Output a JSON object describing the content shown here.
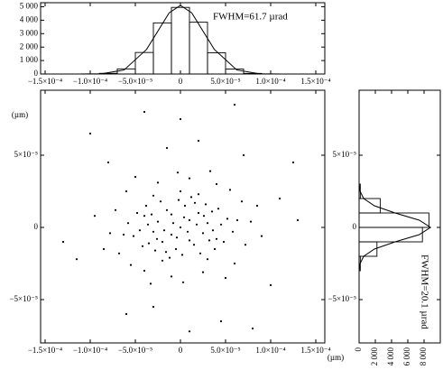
{
  "chart_data": [
    {
      "type": "histogram",
      "annotation": "FWHM=61.7 µrad",
      "bins": [
        -0.00015,
        -0.00013,
        -0.00011,
        -9e-05,
        -7e-05,
        -5e-05,
        -3e-05,
        -1e-05,
        1e-05,
        3e-05,
        5e-05,
        7e-05,
        9e-05,
        0.00011,
        0.00013,
        0.00015
      ],
      "values": [
        0,
        0,
        5,
        50,
        380,
        1600,
        3800,
        4950,
        3850,
        1580,
        370,
        45,
        4,
        0,
        0
      ],
      "fit": {
        "x": [
          -0.0001375,
          -0.0001125,
          -8.75e-05,
          -6.25e-05,
          -3.75e-05,
          -1.25e-05,
          0,
          1.25e-05,
          3.75e-05,
          6.25e-05,
          8.75e-05,
          0.0001125,
          0.0001375
        ],
        "values": [
          0,
          1,
          19,
          297,
          1832,
          4550,
          5100,
          4550,
          1832,
          297,
          19,
          1,
          0
        ]
      },
      "xlim": [
        -0.000155,
        0.00016
      ],
      "xticks": [
        {
          "value": -0.00015,
          "label": "−1.5×10⁻⁴"
        },
        {
          "value": -0.0001,
          "label": "−1.0×10⁻⁴"
        },
        {
          "value": -5e-05,
          "label": "−5.0×10⁻⁵"
        },
        0,
        {
          "value": 5e-05,
          "label": "5.0×10⁻⁵"
        },
        {
          "value": 0.0001,
          "label": "1.0×10⁻⁴"
        },
        {
          "value": 0.00015,
          "label": "1.5×10⁻⁴"
        }
      ],
      "ylim": [
        0,
        5300
      ],
      "yticks": [
        0,
        {
          "value": 1000,
          "label": "1 000"
        },
        {
          "value": 2000,
          "label": "2 000"
        },
        {
          "value": 3000,
          "label": "3 000"
        },
        {
          "value": 4000,
          "label": "4 000"
        },
        {
          "value": 5000,
          "label": "5 000"
        }
      ]
    },
    {
      "type": "scatter",
      "x_label": "(µm)",
      "y_label": "(µm)",
      "x": [
        0,
        1e-05,
        -1e-05,
        2e-05,
        -2e-05,
        3e-05,
        -3e-05,
        5e-06,
        -5e-06,
        4e-05,
        -4e-05,
        1.5e-05,
        -1.5e-05,
        2.5e-05,
        -2.5e-05,
        3.5e-05,
        -3.5e-05,
        2e-06,
        -2e-06,
        4.5e-05,
        -4.5e-05,
        1.2e-05,
        -1.2e-05,
        2.8e-05,
        -2.8e-05,
        3.8e-05,
        -3.8e-05,
        5.2e-05,
        -5.2e-05,
        8e-06,
        -8e-06,
        1.8e-05,
        -1.8e-05,
        2.2e-05,
        -2.2e-05,
        3.2e-05,
        -3.2e-05,
        4.2e-05,
        -4.2e-05,
        5.8e-05,
        -5.8e-05,
        4e-06,
        -4e-06,
        1.6e-05,
        -1.6e-05,
        2.6e-05,
        -2.6e-05,
        3.6e-05,
        -3.6e-05,
        4.8e-05,
        -4.8e-05,
        6.3e-05,
        -6.3e-05,
        1e-05,
        -1e-05,
        2e-05,
        -2e-05,
        3e-05,
        -3e-05,
        0,
        6.8e-05,
        -6.8e-05,
        7.2e-05,
        -7.2e-05,
        5.5e-05,
        -5.5e-05,
        4e-05,
        -4e-05,
        1e-05,
        -1e-05,
        2.5e-05,
        -2.5e-05,
        7.8e-05,
        -7.8e-05,
        6e-05,
        -6e-05,
        3e-06,
        -3e-06,
        8.5e-05,
        -8.5e-05,
        3.3e-05,
        -3.3e-05,
        5e-05,
        -5e-05,
        9e-05,
        -9.5e-05,
        0.00011,
        -0.000115,
        2e-05,
        -3e-05,
        7e-05,
        -8e-05,
        0.0001,
        -6e-05,
        0,
        4.5e-05,
        -1.5e-05,
        0.00013,
        -0.00013,
        8e-05,
        -0.0001,
        1e-05,
        0.000125,
        -4e-05,
        6e-05
      ],
      "y": [
        0,
        5e-06,
        -5e-06,
        1e-05,
        -1e-05,
        3e-06,
        -3e-06,
        1.5e-05,
        -1.5e-05,
        -8e-06,
        8e-06,
        -1.2e-05,
        1.2e-05,
        -4e-06,
        4e-06,
        1.1e-05,
        -1.1e-05,
        -1.9e-05,
        1.9e-05,
        2e-06,
        -2e-06,
        2.1e-05,
        -2.1e-05,
        1.6e-05,
        -1.6e-05,
        -1.5e-05,
        1.5e-05,
        6e-06,
        -6e-06,
        -3e-06,
        3e-06,
        2e-06,
        -2e-06,
        -1.8e-05,
        1.8e-05,
        -9e-06,
        9e-06,
        1.3e-05,
        -1.3e-05,
        -3e-06,
        3e-06,
        7e-06,
        -7e-06,
        1.7e-05,
        -1.7e-05,
        8e-06,
        -8e-06,
        -2e-06,
        2e-06,
        -1e-05,
        1e-05,
        5e-06,
        -5e-06,
        -9e-06,
        9e-06,
        2.3e-05,
        -2.3e-05,
        -2.2e-05,
        2.2e-05,
        2.5e-05,
        1.8e-05,
        -1.8e-05,
        -1.2e-05,
        1.2e-05,
        2.6e-05,
        -2.6e-05,
        3e-05,
        -3e-05,
        3.4e-05,
        -3.4e-05,
        -3.1e-05,
        3.1e-05,
        4e-06,
        -4e-06,
        -2.5e-05,
        2.5e-05,
        -3.8e-05,
        3.8e-05,
        1.5e-05,
        -1.5e-05,
        3.9e-05,
        -3.9e-05,
        -3.5e-05,
        3.5e-05,
        -6e-06,
        8e-06,
        2e-05,
        -2.2e-05,
        6e-05,
        -5.5e-05,
        5e-05,
        4.5e-05,
        -4e-05,
        -6e-05,
        7.5e-05,
        -6.5e-05,
        5.5e-05,
        5e-06,
        -1e-05,
        -7e-05,
        6.5e-05,
        -7.2e-05,
        4.5e-05,
        8e-05,
        8.5e-05
      ],
      "xlim": [
        -0.000155,
        0.00016
      ],
      "xticks": [
        {
          "value": -0.00015,
          "label": "−1.5×10⁻⁴"
        },
        {
          "value": -0.0001,
          "label": "−1.0×10⁻⁴"
        },
        {
          "value": -5e-05,
          "label": "−5.0×10⁻⁵"
        },
        0,
        {
          "value": 5e-05,
          "label": "5.0×10⁻⁵"
        },
        {
          "value": 0.0001,
          "label": "1.0×10⁻⁴"
        },
        {
          "value": 0.00015,
          "label": "1.5×10⁻⁴"
        }
      ],
      "ylim": [
        -8e-05,
        9.5e-05
      ],
      "yticks": [
        {
          "value": -5e-05,
          "label": "−5×10⁻⁵"
        },
        0,
        {
          "value": 5e-05,
          "label": "5×10⁻⁵"
        }
      ],
      "color": "#000000"
    },
    {
      "type": "histogram",
      "orientation": "horizontal",
      "annotation": "FWHM=20.1 µrad",
      "bins": [
        -3e-05,
        -2e-05,
        -1e-05,
        0,
        1e-05,
        2e-05,
        3e-05
      ],
      "values": [
        150,
        2200,
        7800,
        8600,
        2600,
        150
      ],
      "fit": {
        "y": [
          -3e-05,
          -2.5e-05,
          -2e-05,
          -1.5e-05,
          -1e-05,
          -5e-06,
          0,
          5e-06,
          1e-05,
          1.5e-05,
          2e-05,
          2.5e-05,
          3e-05
        ],
        "values": [
          18,
          120,
          567,
          1880,
          4430,
          7410,
          8800,
          7410,
          4430,
          1880,
          567,
          120,
          18
        ]
      },
      "xlim": [
        0,
        10000
      ],
      "xticks": [
        0,
        {
          "value": 2000,
          "label": "2 000"
        },
        {
          "value": 4000,
          "label": "4 000"
        },
        {
          "value": 6000,
          "label": "6 000"
        },
        {
          "value": 8000,
          "label": "8 000"
        }
      ],
      "ylim": [
        -8e-05,
        9.5e-05
      ],
      "yticks": [
        {
          "value": -5e-05,
          "label": "−5×10⁻⁵"
        },
        0,
        {
          "value": 5e-05,
          "label": "5×10⁻⁵"
        }
      ]
    }
  ]
}
